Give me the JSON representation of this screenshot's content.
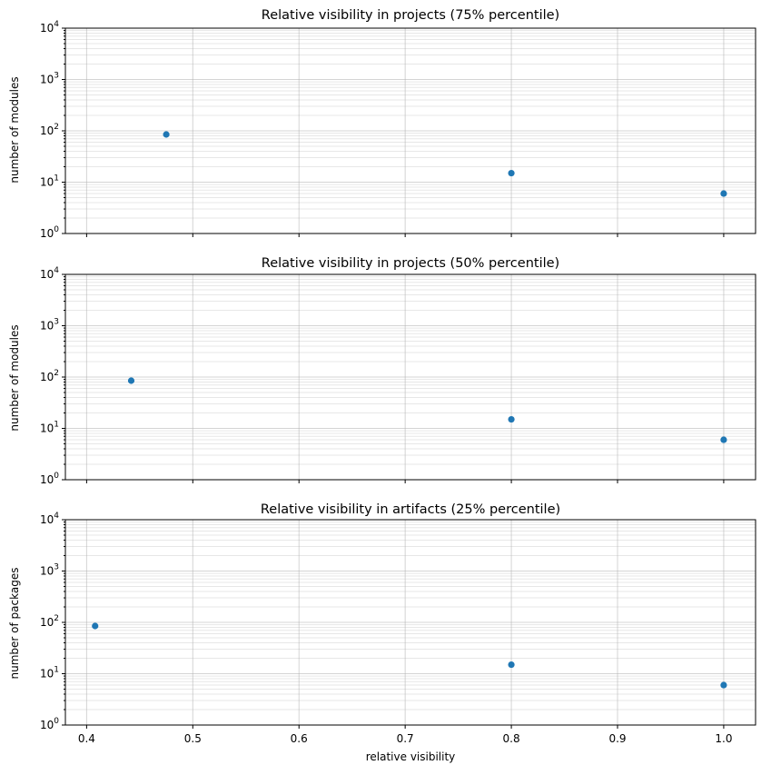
{
  "chart_data": [
    {
      "type": "scatter",
      "title": "Relative visibility in projects (75% percentile)",
      "xlabel": "",
      "ylabel": "number of modules",
      "xlim": [
        0.38,
        1.03
      ],
      "ylim": [
        1,
        10000
      ],
      "yscale": "log",
      "grid": true,
      "color": "#1f77b4",
      "x": [
        0.475,
        0.8,
        1.0
      ],
      "y": [
        85,
        15,
        6
      ]
    },
    {
      "type": "scatter",
      "title": "Relative visibility in projects (50% percentile)",
      "xlabel": "",
      "ylabel": "number of modules",
      "xlim": [
        0.38,
        1.03
      ],
      "ylim": [
        1,
        10000
      ],
      "yscale": "log",
      "grid": true,
      "color": "#1f77b4",
      "x": [
        0.442,
        0.8,
        1.0
      ],
      "y": [
        85,
        15,
        6
      ]
    },
    {
      "type": "scatter",
      "title": "Relative visibility in artifacts (25% percentile)",
      "xlabel": "relative visibility",
      "ylabel": "number of packages",
      "xlim": [
        0.38,
        1.03
      ],
      "ylim": [
        1,
        10000
      ],
      "yscale": "log",
      "grid": true,
      "color": "#1f77b4",
      "x": [
        0.408,
        0.8,
        1.0
      ],
      "y": [
        85,
        15,
        6
      ]
    }
  ],
  "axes": {
    "x_ticks": [
      "0.4",
      "0.5",
      "0.6",
      "0.7",
      "0.8",
      "0.9",
      "1.0"
    ],
    "x_tick_values": [
      0.4,
      0.5,
      0.6,
      0.7,
      0.8,
      0.9,
      1.0
    ],
    "y_ticks": [
      {
        "base": "10",
        "exp": "0",
        "value": 1
      },
      {
        "base": "10",
        "exp": "1",
        "value": 10
      },
      {
        "base": "10",
        "exp": "2",
        "value": 100
      },
      {
        "base": "10",
        "exp": "3",
        "value": 1000
      },
      {
        "base": "10",
        "exp": "4",
        "value": 10000
      }
    ]
  }
}
